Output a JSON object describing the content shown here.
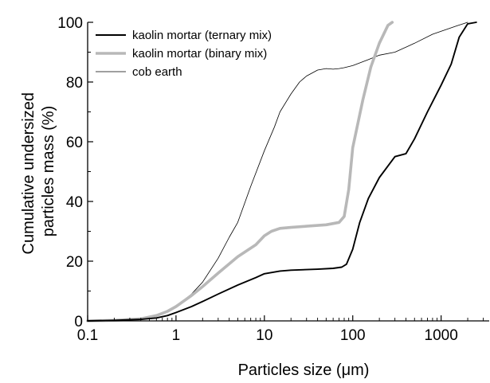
{
  "chart_data": {
    "type": "line",
    "xlabel": "Particles size (μm)",
    "ylabel_lines": [
      "Cumulative undersized",
      "particles mass (%)"
    ],
    "xscale": "log",
    "xlim": [
      0.1,
      3500
    ],
    "ylim": [
      0,
      100
    ],
    "xticks": [
      0.1,
      1,
      10,
      100,
      1000
    ],
    "xtick_labels": [
      "0.1",
      "1",
      "10",
      "100",
      "1000"
    ],
    "yticks": [
      0,
      20,
      40,
      60,
      80,
      100
    ],
    "ytick_labels": [
      "0",
      "20",
      "40",
      "60",
      "80",
      "100"
    ],
    "grid": false,
    "legend_position": "top-left",
    "series": [
      {
        "name": "kaolin mortar (ternary mix)",
        "color": "#000000",
        "style": "medium",
        "x": [
          0.1,
          0.2,
          0.4,
          0.6,
          0.8,
          1,
          1.5,
          2,
          3,
          5,
          8,
          10,
          15,
          20,
          40,
          60,
          75,
          85,
          100,
          120,
          150,
          200,
          300,
          400,
          500,
          700,
          1000,
          1300,
          1600,
          2000,
          2500
        ],
        "y": [
          0,
          0.2,
          0.5,
          1,
          1.8,
          2.8,
          4.8,
          6.5,
          9,
          12,
          14.5,
          15.8,
          16.7,
          17,
          17.3,
          17.6,
          18,
          19,
          24,
          33,
          41,
          48,
          55,
          56,
          61,
          70,
          79,
          86,
          95,
          99.5,
          100
        ]
      },
      {
        "name": "kaolin mortar (binary mix)",
        "color": "#b8b8b8",
        "style": "thick",
        "x": [
          0.1,
          0.2,
          0.4,
          0.6,
          0.8,
          1,
          1.5,
          2,
          3,
          5,
          8,
          10,
          12,
          15,
          20,
          30,
          50,
          70,
          80,
          90,
          100,
          130,
          160,
          200,
          250,
          280
        ],
        "y": [
          0,
          0.2,
          0.7,
          1.8,
          3.2,
          4.8,
          8.5,
          11.5,
          16,
          21.5,
          25.5,
          28.5,
          30,
          31,
          31.3,
          31.7,
          32.2,
          33,
          35,
          44,
          58,
          74,
          85,
          93,
          99,
          100
        ]
      },
      {
        "name": "cob earth",
        "color": "#000000",
        "style": "thin",
        "x": [
          0.1,
          0.2,
          0.4,
          0.6,
          0.8,
          1,
          1.5,
          2,
          3,
          4,
          5,
          7,
          10,
          13,
          15,
          20,
          25,
          30,
          40,
          50,
          60,
          70,
          80,
          100,
          150,
          200,
          300,
          500,
          800,
          1000,
          1500,
          2000
        ],
        "y": [
          0,
          0.3,
          0.8,
          1.8,
          3.2,
          5,
          9,
          13,
          21,
          28,
          33,
          45,
          57,
          65,
          70,
          76,
          80,
          82,
          84,
          84.5,
          84.3,
          84.5,
          84.8,
          85.5,
          87.5,
          89,
          90,
          93,
          96,
          97,
          98.8,
          100
        ]
      }
    ]
  }
}
